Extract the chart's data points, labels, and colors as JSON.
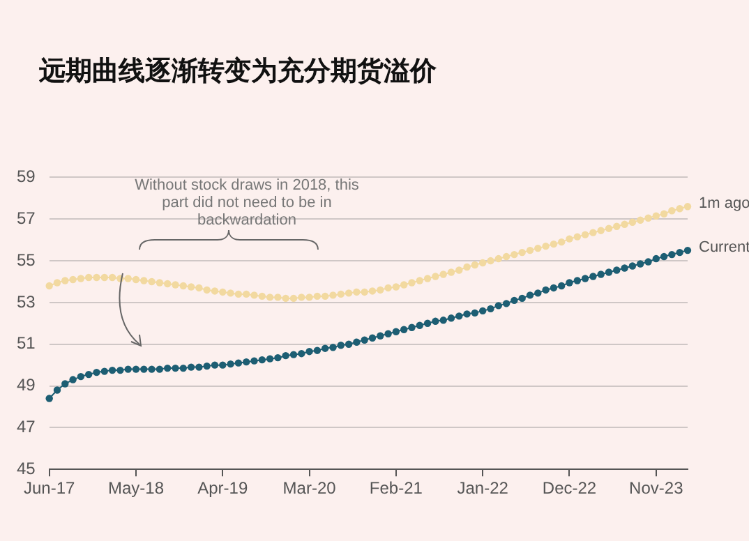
{
  "chart_data": {
    "type": "line",
    "title": "远期曲线逐渐转变为充分期货溢价",
    "categories": [
      "Jun-17",
      null,
      null,
      null,
      null,
      null,
      null,
      null,
      null,
      null,
      null,
      "May-18",
      null,
      null,
      null,
      null,
      null,
      null,
      null,
      null,
      null,
      null,
      "Apr-19",
      null,
      null,
      null,
      null,
      null,
      null,
      null,
      null,
      null,
      null,
      "Mar-20",
      null,
      null,
      null,
      null,
      null,
      null,
      null,
      null,
      null,
      null,
      "Feb-21",
      null,
      null,
      null,
      null,
      null,
      null,
      null,
      null,
      null,
      null,
      "Jan-22",
      null,
      null,
      null,
      null,
      null,
      null,
      null,
      null,
      null,
      null,
      "Dec-22",
      null,
      null,
      null,
      null,
      null,
      null,
      null,
      null,
      null,
      null,
      "Nov-23",
      null,
      null,
      null,
      null
    ],
    "series": [
      {
        "name": "1m ago",
        "color": "#f2d9a0",
        "values": [
          53.8,
          53.95,
          54.05,
          54.1,
          54.15,
          54.2,
          54.2,
          54.2,
          54.2,
          54.15,
          54.15,
          54.1,
          54.05,
          54.0,
          53.95,
          53.9,
          53.85,
          53.8,
          53.75,
          53.7,
          53.6,
          53.55,
          53.5,
          53.45,
          53.4,
          53.4,
          53.35,
          53.3,
          53.25,
          53.25,
          53.2,
          53.2,
          53.25,
          53.25,
          53.3,
          53.3,
          53.35,
          53.4,
          53.45,
          53.5,
          53.5,
          53.55,
          53.6,
          53.7,
          53.75,
          53.85,
          53.95,
          54.05,
          54.15,
          54.25,
          54.35,
          54.45,
          54.55,
          54.7,
          54.8,
          54.9,
          55.0,
          55.1,
          55.2,
          55.3,
          55.4,
          55.5,
          55.6,
          55.7,
          55.8,
          55.9,
          56.05,
          56.15,
          56.25,
          56.35,
          56.45,
          56.55,
          56.65,
          56.75,
          56.85,
          56.95,
          57.05,
          57.15,
          57.25,
          57.4,
          57.5,
          57.6
        ]
      },
      {
        "name": "Current",
        "color": "#1d5e73",
        "values": [
          48.4,
          48.8,
          49.1,
          49.3,
          49.45,
          49.55,
          49.65,
          49.7,
          49.75,
          49.75,
          49.8,
          49.8,
          49.8,
          49.8,
          49.8,
          49.85,
          49.85,
          49.85,
          49.9,
          49.9,
          49.95,
          50.0,
          50.0,
          50.05,
          50.1,
          50.15,
          50.2,
          50.25,
          50.3,
          50.35,
          50.45,
          50.5,
          50.55,
          50.65,
          50.7,
          50.8,
          50.85,
          50.95,
          51.0,
          51.1,
          51.2,
          51.3,
          51.4,
          51.5,
          51.6,
          51.7,
          51.8,
          51.9,
          52.0,
          52.1,
          52.15,
          52.25,
          52.35,
          52.45,
          52.5,
          52.6,
          52.7,
          52.85,
          52.95,
          53.1,
          53.2,
          53.35,
          53.45,
          53.6,
          53.7,
          53.8,
          53.95,
          54.05,
          54.15,
          54.25,
          54.35,
          54.45,
          54.55,
          54.65,
          54.75,
          54.85,
          54.95,
          55.1,
          55.2,
          55.3,
          55.4,
          55.5
        ]
      }
    ],
    "ylim": [
      45,
      59
    ],
    "yticks": [
      45,
      47,
      49,
      51,
      53,
      55,
      57,
      59
    ],
    "grid": "y",
    "legend": false,
    "marker": "circle",
    "annotations": [
      "Without stock draws in 2018, this part did not need to be in backwardation"
    ]
  }
}
